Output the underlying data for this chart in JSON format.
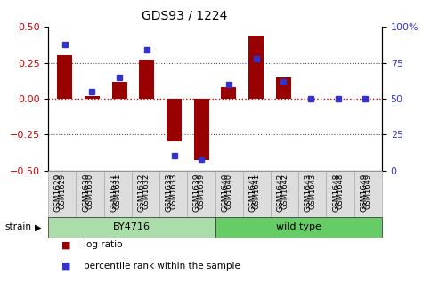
{
  "title": "GDS93 / 1224",
  "samples": [
    "GSM1629",
    "GSM1630",
    "GSM1631",
    "GSM1632",
    "GSM1633",
    "GSM1639",
    "GSM1640",
    "GSM1641",
    "GSM1642",
    "GSM1643",
    "GSM1648",
    "GSM1649"
  ],
  "log_ratio": [
    0.3,
    0.02,
    0.12,
    0.27,
    -0.3,
    -0.43,
    0.08,
    0.44,
    0.15,
    0.0,
    0.0,
    0.0
  ],
  "percentile": [
    88,
    55,
    65,
    84,
    10,
    8,
    60,
    78,
    62,
    50,
    50,
    50
  ],
  "bar_color": "#990000",
  "dot_color": "#3333cc",
  "ylim_left": [
    -0.5,
    0.5
  ],
  "ylim_right": [
    0,
    100
  ],
  "yticks_left": [
    -0.5,
    -0.25,
    0.0,
    0.25,
    0.5
  ],
  "yticks_right": [
    0,
    25,
    50,
    75,
    100
  ],
  "groups": [
    {
      "label": "BY4716",
      "start": 0,
      "end": 6,
      "color": "#aaddaa"
    },
    {
      "label": "wild type",
      "start": 6,
      "end": 12,
      "color": "#66cc66"
    }
  ],
  "strain_label": "strain",
  "legend_items": [
    {
      "label": "log ratio",
      "color": "#990000"
    },
    {
      "label": "percentile rank within the sample",
      "color": "#3333cc"
    }
  ],
  "hline_color": "#cc0000",
  "dotted_color": "#555555",
  "bar_width": 0.55,
  "tick_label_color_left": "#cc0000",
  "tick_label_color_right": "#3333cc"
}
